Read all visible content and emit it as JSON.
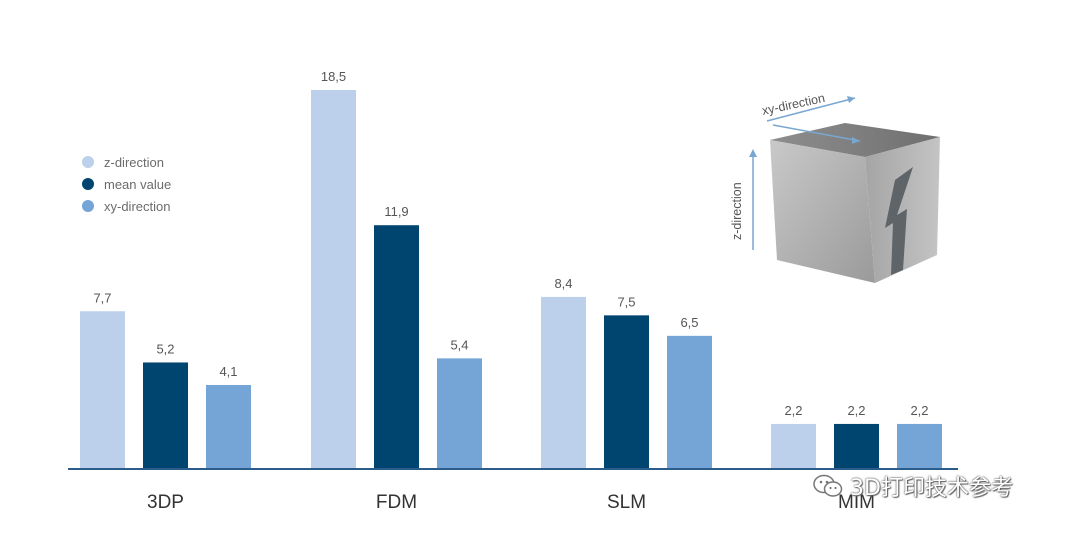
{
  "chart_data": {
    "type": "bar",
    "categories": [
      "3DP",
      "FDM",
      "SLM",
      "MIM"
    ],
    "series": [
      {
        "name": "z-direction",
        "values": [
          7.7,
          18.5,
          8.4,
          2.2
        ],
        "labels": [
          "7,7",
          "18,5",
          "8,4",
          "2,2"
        ],
        "color": "#bccfeb"
      },
      {
        "name": "mean value",
        "values": [
          5.2,
          11.9,
          7.5,
          2.2
        ],
        "labels": [
          "5,2",
          "11,9",
          "7,5",
          "2,2"
        ],
        "color": "#004570"
      },
      {
        "name": "xy-direction",
        "values": [
          4.1,
          5.4,
          6.5,
          2.2
        ],
        "labels": [
          "4,1",
          "5,4",
          "6,5",
          "2,2"
        ],
        "color": "#75a4d6"
      }
    ],
    "ylim": [
      0,
      18.5
    ],
    "grid": false,
    "legend": "top-left",
    "axis_color": "#2a5d8a"
  },
  "inset": {
    "xy_label": "xy-direction",
    "z_label": "z-direction",
    "arrow_color": "#7aa6d2"
  },
  "watermark": {
    "text": "3D打印技术参考",
    "icon": "wechat-icon"
  }
}
